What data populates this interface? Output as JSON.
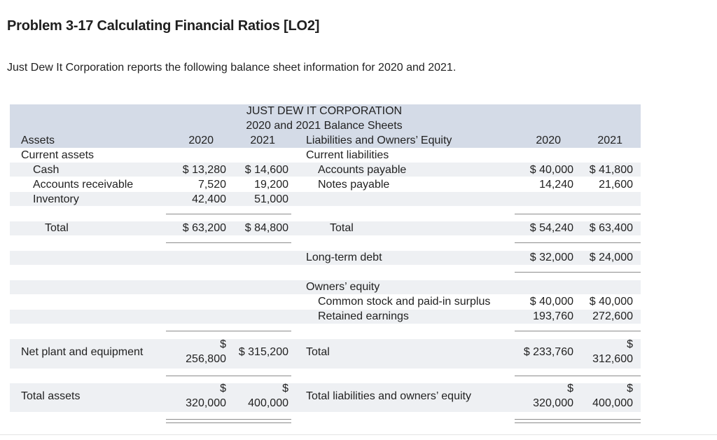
{
  "problem": {
    "title": "Problem 3-17 Calculating Financial Ratios [LO2]",
    "intro": "Just Dew It Corporation reports the following balance sheet information for 2020 and 2021."
  },
  "sheet": {
    "company": "JUST DEW IT CORPORATION",
    "subtitle": "2020 and 2021 Balance Sheets",
    "assets_header": "Assets",
    "year1": "2020",
    "year2": "2021",
    "liab_header": "Liabilities and Owners’ Equity",
    "current_assets": "Current assets",
    "current_liabilities": "Current liabilities",
    "cash": {
      "label": "Cash",
      "y2020": "$ 13,280",
      "y2021": "$ 14,600"
    },
    "receivables": {
      "label": "Accounts receivable",
      "y2020": "7,520",
      "y2021": "19,200"
    },
    "inventory": {
      "label": "Inventory",
      "y2020": "42,400",
      "y2021": "51,000"
    },
    "payable": {
      "label": "Accounts payable",
      "y2020": "$ 40,000",
      "y2021": "$ 41,800"
    },
    "notes": {
      "label": "Notes payable",
      "y2020": "14,240",
      "y2021": "21,600"
    },
    "total_ca": {
      "label": "Total",
      "y2020": "$ 63,200",
      "y2021": "$ 84,800"
    },
    "total_cl": {
      "label": "Total",
      "y2020": "$ 54,240",
      "y2021": "$ 63,400"
    },
    "ltd": {
      "label": "Long-term debt",
      "y2020": "$ 32,000",
      "y2021": "$ 24,000"
    },
    "owners_equity": "Owners’ equity",
    "common": {
      "label": "Common stock and paid-in surplus",
      "y2020": "$ 40,000",
      "y2021": "$ 40,000"
    },
    "retained": {
      "label": "Retained earnings",
      "y2020": "193,760",
      "y2021": "272,600"
    },
    "net_plant": {
      "label": "Net plant and equipment",
      "y2020_sym": "$",
      "y2020": "256,800",
      "y2021": "$ 315,200"
    },
    "total_eq": {
      "label": "Total",
      "y2020": "$ 233,760",
      "y2021_sym": "$",
      "y2021": "312,600"
    },
    "total_assets": {
      "label": "Total assets",
      "y2020_sym": "$",
      "y2020": "320,000",
      "y2021_sym": "$",
      "y2021": "400,000"
    },
    "total_le": {
      "label": "Total liabilities and owners’ equity",
      "y2020_sym": "$",
      "y2020": "320,000",
      "y2021_sym": "$",
      "y2021": "400,000"
    }
  }
}
